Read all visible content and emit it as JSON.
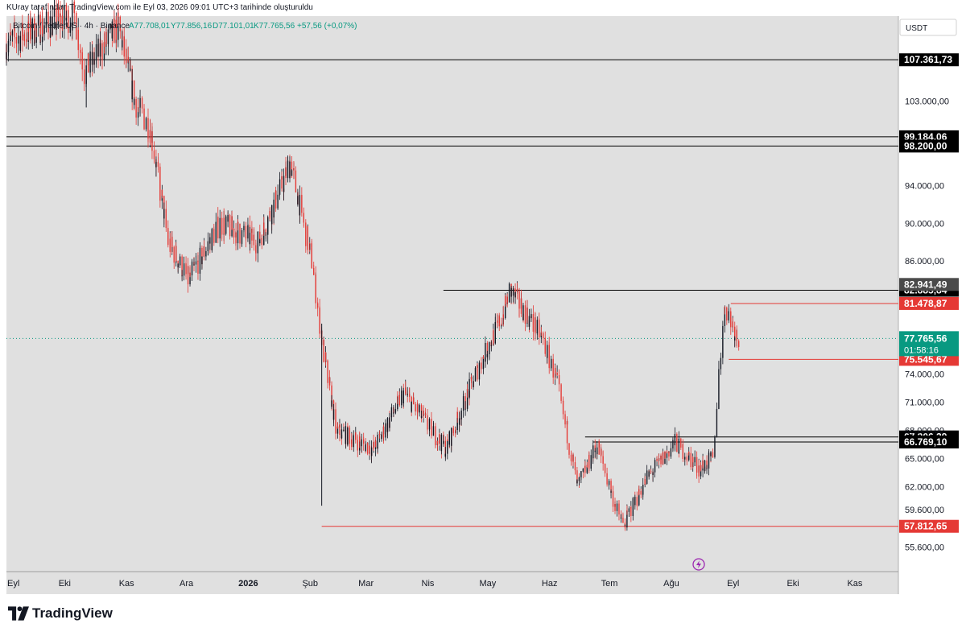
{
  "credit": "KUray tarafından TradingView.com ile Eyl 03, 2026 09:01 UTC+3 tarihinde oluşturuldu",
  "brand": "TradingView",
  "colors": {
    "background": "#e0e0e0",
    "candle_up": "#131722",
    "candle_down": "#e53935",
    "support_line": "#e53935",
    "resistance_line": "#000000",
    "current_price": "#089981"
  },
  "chart_data": {
    "type": "candlestick",
    "symbol_legend": "Bitcoin / TetherUS · 4h · Binance",
    "ohlc_legend": {
      "open": "A77.708,01",
      "high": "Y77.856,16",
      "low": "D77.101,01",
      "close": "K77.765,56",
      "change": "+57,56 (+0,07%)"
    },
    "currency": "USDT",
    "x_labels": [
      "Eyl",
      "Eki",
      "Kas",
      "Ara",
      "2026",
      "Şub",
      "Mar",
      "Nis",
      "May",
      "Haz",
      "Tem",
      "Ağu",
      "Eyl",
      "Eki",
      "Kas"
    ],
    "y_tick_labels": [
      "103.000,00",
      "94.000,00",
      "90.000,00",
      "86.000,00",
      "74.000,00",
      "71.000,00",
      "68.000,00",
      "65.000,00",
      "62.000,00",
      "59.600,00",
      "55.600,00"
    ],
    "ylim": [
      53000,
      112000
    ],
    "price_path": [
      {
        "date": "2025-09-01",
        "price": 109000
      },
      {
        "date": "2025-09-20",
        "price": 111000
      },
      {
        "date": "2025-10-06",
        "price": 112000
      },
      {
        "date": "2025-10-11",
        "price": 106000
      },
      {
        "date": "2025-10-28",
        "price": 111000
      },
      {
        "date": "2025-11-05",
        "price": 103000
      },
      {
        "date": "2025-11-13",
        "price": 100000
      },
      {
        "date": "2025-11-22",
        "price": 88000
      },
      {
        "date": "2025-12-02",
        "price": 84000
      },
      {
        "date": "2025-12-18",
        "price": 90000
      },
      {
        "date": "2026-01-06",
        "price": 88000
      },
      {
        "date": "2026-01-18",
        "price": 94000
      },
      {
        "date": "2026-01-22",
        "price": 96500
      },
      {
        "date": "2026-02-02",
        "price": 86000
      },
      {
        "date": "2026-02-08",
        "price": 76000
      },
      {
        "date": "2026-02-14",
        "price": 68000
      },
      {
        "date": "2026-03-05",
        "price": 66000
      },
      {
        "date": "2026-03-20",
        "price": 72000
      },
      {
        "date": "2026-04-10",
        "price": 66000
      },
      {
        "date": "2026-04-25",
        "price": 74000
      },
      {
        "date": "2026-05-08",
        "price": 80000
      },
      {
        "date": "2026-05-12",
        "price": 82900
      },
      {
        "date": "2026-05-28",
        "price": 78000
      },
      {
        "date": "2026-06-05",
        "price": 73000
      },
      {
        "date": "2026-06-15",
        "price": 62000
      },
      {
        "date": "2026-06-25",
        "price": 66500
      },
      {
        "date": "2026-07-04",
        "price": 60000
      },
      {
        "date": "2026-07-08",
        "price": 58000
      },
      {
        "date": "2026-07-20",
        "price": 63000
      },
      {
        "date": "2026-08-03",
        "price": 66700
      },
      {
        "date": "2026-08-15",
        "price": 64000
      },
      {
        "date": "2026-08-22",
        "price": 65000
      },
      {
        "date": "2026-08-25",
        "price": 74000
      },
      {
        "date": "2026-08-28",
        "price": 81500
      },
      {
        "date": "2026-09-03",
        "price": 77765
      }
    ],
    "wick_lows": [
      {
        "date": "2025-10-11",
        "price": 102300
      },
      {
        "date": "2026-02-06",
        "price": 60000
      },
      {
        "date": "2026-07-08",
        "price": 57812
      }
    ],
    "horizontal_levels": [
      {
        "price_label": "107.361,73",
        "price": 107361.73,
        "kind": "resistance",
        "from": "2025-09-01"
      },
      {
        "price_label": "99.184,06",
        "price": 99184.06,
        "kind": "resistance",
        "from": "2025-09-01"
      },
      {
        "price_label": "98.200,00",
        "price": 98200.0,
        "kind": "resistance",
        "from": "2025-09-01"
      },
      {
        "price_label": "82.885,84",
        "price": 82885.84,
        "kind": "resistance",
        "from": "2026-04-08"
      },
      {
        "price_label": "67.306,29",
        "price": 67306.29,
        "kind": "resistance",
        "from": "2026-06-18"
      },
      {
        "price_label": "66.769,10",
        "price": 66769.1,
        "kind": "resistance",
        "from": "2026-06-22"
      },
      {
        "price_label": "81.478,87",
        "price": 81478.87,
        "kind": "support",
        "from": "2026-08-30"
      },
      {
        "price_label": "75.545,67",
        "price": 75545.67,
        "kind": "support",
        "from": "2026-08-29"
      },
      {
        "price_label": "57.812,65",
        "price": 57812.65,
        "kind": "support",
        "from": "2026-02-06"
      }
    ],
    "extra_labels": [
      {
        "price_label": "82.941,49",
        "price": 83500,
        "style": "gray"
      }
    ],
    "current_price": {
      "price_label": "77.765,56",
      "price": 77765.56,
      "countdown": "01:58:16"
    }
  }
}
